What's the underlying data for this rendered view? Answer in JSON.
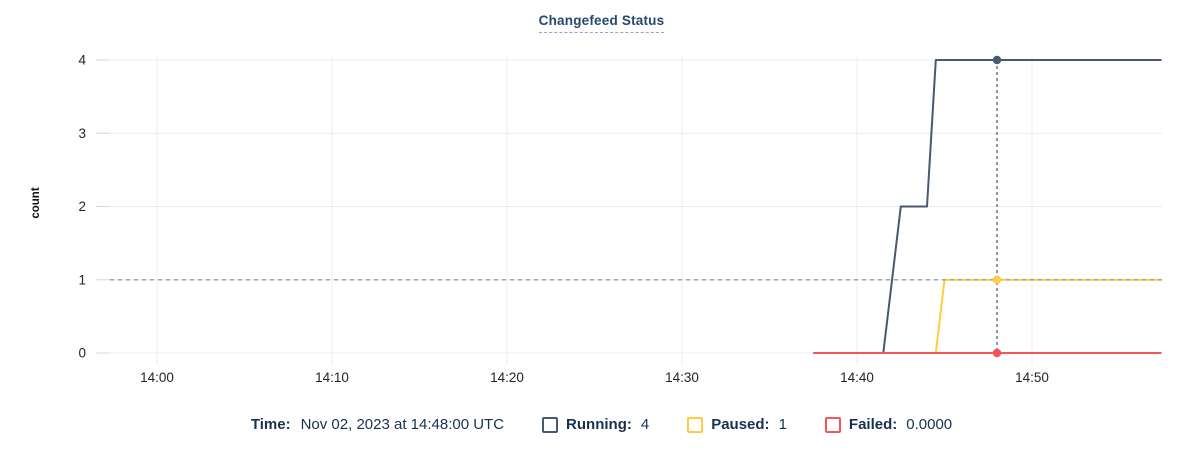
{
  "title": "Changefeed Status",
  "legend": {
    "time_label": "Time:",
    "time_value": "Nov 02, 2023 at 14:48:00 UTC",
    "items": [
      {
        "label": "Running:",
        "value": "4",
        "color": "#475872"
      },
      {
        "label": "Paused:",
        "value": "1",
        "color": "#ffcd3d"
      },
      {
        "label": "Failed:",
        "value": "0.0000",
        "color": "#f2555c"
      }
    ]
  },
  "colors": {
    "running_line": "#475872",
    "paused_line": "#ffcd3d",
    "failed_line": "#f2555c",
    "reference_dashed": "#93a8b2",
    "crosshair": "#5f7d8c",
    "gridline": "#ececec",
    "axis_tick": "#d6d9dc",
    "axis_text": "#242424",
    "title_text": "#26486e",
    "legend_text": "#16324f"
  },
  "chart_data": {
    "type": "line",
    "title": "Changefeed Status",
    "xlabel": "",
    "ylabel": "count",
    "x_unit": "time of day (UTC)",
    "x_ticks": [
      {
        "t": 0,
        "label": "14:00"
      },
      {
        "t": 10,
        "label": "14:10"
      },
      {
        "t": 20,
        "label": "14:20"
      },
      {
        "t": 30,
        "label": "14:30"
      },
      {
        "t": 40,
        "label": "14:40"
      },
      {
        "t": 50,
        "label": "14:50"
      }
    ],
    "y_ticks": [
      0,
      1,
      2,
      3,
      4
    ],
    "ylim": [
      0,
      4
    ],
    "xlim_minutes_after_1400": [
      -3.5,
      57.4
    ],
    "grid": true,
    "legend_position": "bottom",
    "series": [
      {
        "name": "Running",
        "color": "#475872",
        "points_minutes_value": [
          [
            37.5,
            0
          ],
          [
            41.5,
            0
          ],
          [
            42.5,
            2
          ],
          [
            44.0,
            2
          ],
          [
            44.5,
            4
          ],
          [
            57.4,
            4
          ]
        ]
      },
      {
        "name": "Paused",
        "color": "#ffcd3d",
        "points_minutes_value": [
          [
            37.5,
            0
          ],
          [
            44.5,
            0
          ],
          [
            45.0,
            1
          ],
          [
            57.4,
            1
          ]
        ]
      },
      {
        "name": "Failed",
        "color": "#f2555c",
        "points_minutes_value": [
          [
            37.5,
            0
          ],
          [
            57.4,
            0
          ]
        ]
      }
    ],
    "hover_crosshair": {
      "t": 48,
      "time": "14:48:00 UTC",
      "values": {
        "Running": 4,
        "Paused": 1,
        "Failed": 0
      }
    },
    "reference_dashed_line_at_value": 1
  }
}
